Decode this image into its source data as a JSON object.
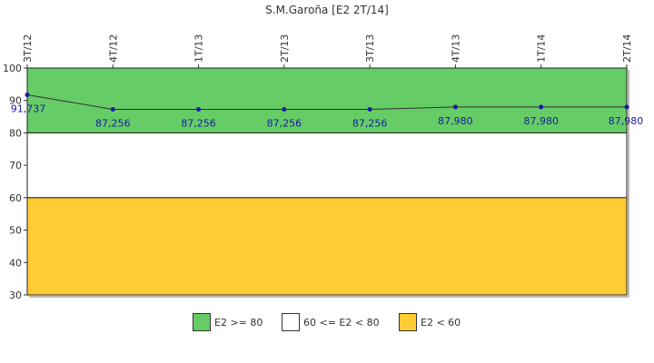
{
  "chart_data": {
    "type": "line",
    "title": "S.M.Garoña [E2 2T/14]",
    "xlabel": "",
    "ylabel": "",
    "categories": [
      "3T/12",
      "4T/12",
      "1T/13",
      "2T/13",
      "3T/13",
      "4T/13",
      "1T/14",
      "2T/14"
    ],
    "values": [
      91.737,
      87.256,
      87.256,
      87.256,
      87.256,
      87.98,
      87.98,
      87.98
    ],
    "value_labels": [
      "91,737",
      "87,256",
      "87,256",
      "87,256",
      "87,256",
      "87,980",
      "87,980",
      "87,980"
    ],
    "ylim": [
      30,
      100
    ],
    "yticks": [
      30,
      40,
      50,
      60,
      70,
      80,
      90,
      100
    ],
    "grid": false,
    "bands": [
      {
        "from": 80,
        "to": 100,
        "color": "#66cc66",
        "label": "E2 >= 80"
      },
      {
        "from": 60,
        "to": 80,
        "color": "#ffffff",
        "label": "60 <= E2 < 80"
      },
      {
        "from": 30,
        "to": 60,
        "color": "#ffcc33",
        "label": "E2 < 60"
      }
    ],
    "line_color": "#333333",
    "marker_color": "#1a1aa6",
    "label_color": "#1a1aa6",
    "legend_position": "bottom-center"
  }
}
